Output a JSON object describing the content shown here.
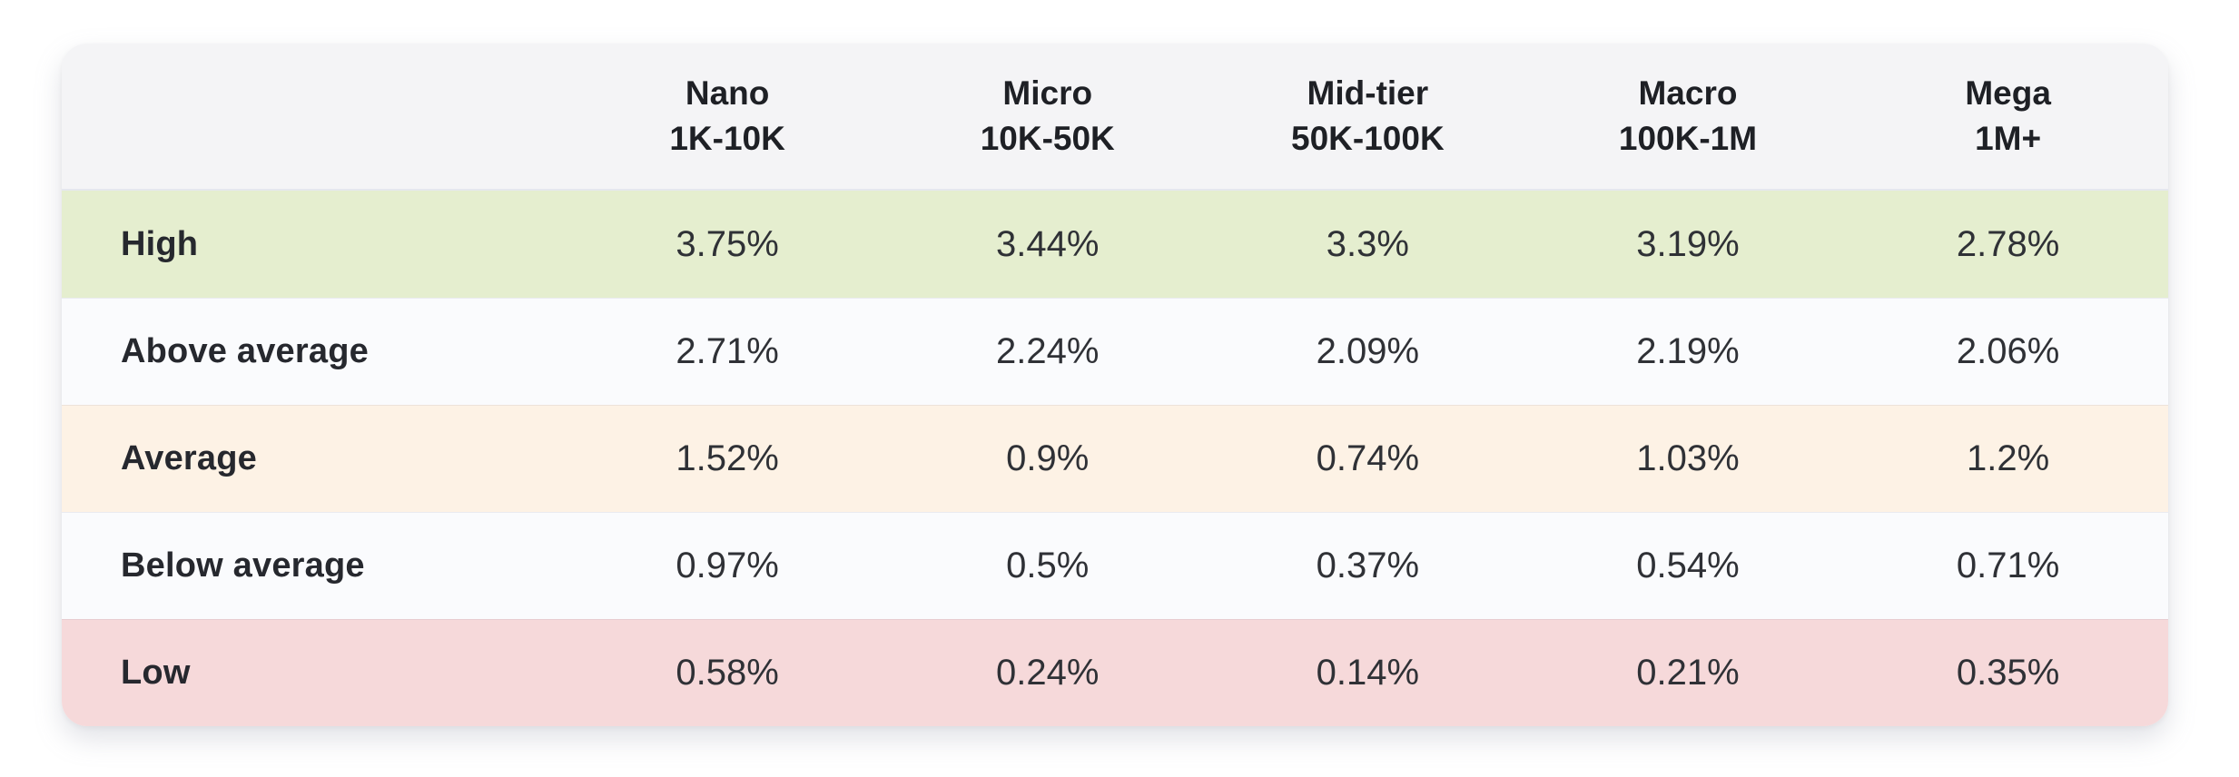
{
  "table": {
    "columns": [
      {
        "label": "Nano",
        "range": "1K-10K"
      },
      {
        "label": "Micro",
        "range": "10K-50K"
      },
      {
        "label": "Mid-tier",
        "range": "50K-100K"
      },
      {
        "label": "Macro",
        "range": "100K-1M"
      },
      {
        "label": "Mega",
        "range": "1M+"
      }
    ],
    "rows": [
      {
        "label": "High",
        "values": [
          "3.75%",
          "3.44%",
          "3.3%",
          "3.19%",
          "2.78%"
        ]
      },
      {
        "label": "Above average",
        "values": [
          "2.71%",
          "2.24%",
          "2.09%",
          "2.19%",
          "2.06%"
        ]
      },
      {
        "label": "Average",
        "values": [
          "1.52%",
          "0.9%",
          "0.74%",
          "1.03%",
          "1.2%"
        ]
      },
      {
        "label": "Below average",
        "values": [
          "0.97%",
          "0.5%",
          "0.37%",
          "0.54%",
          "0.71%"
        ]
      },
      {
        "label": "Low",
        "values": [
          "0.58%",
          "0.24%",
          "0.14%",
          "0.21%",
          "0.35%"
        ]
      }
    ]
  },
  "colors": {
    "header_bg": "#f4f4f6",
    "header_divider": "#e5e7ee",
    "row_high_bg": "#e5eecf",
    "row_neutral_bg": "#fafbfd",
    "row_average_bg": "#fdf2e5",
    "row_low_bg": "#f6d9da",
    "label_text": "#26282e",
    "value_text": "#2f3136"
  },
  "chart_data": {
    "type": "table",
    "title": "",
    "row_labels": [
      "High",
      "Above average",
      "Average",
      "Below average",
      "Low"
    ],
    "column_labels": [
      "Nano 1K-10K",
      "Micro 10K-50K",
      "Mid-tier 50K-100K",
      "Macro 100K-1M",
      "Mega 1M+"
    ],
    "values_percent": [
      [
        3.75,
        3.44,
        3.3,
        3.19,
        2.78
      ],
      [
        2.71,
        2.24,
        2.09,
        2.19,
        2.06
      ],
      [
        1.52,
        0.9,
        0.74,
        1.03,
        1.2
      ],
      [
        0.97,
        0.5,
        0.37,
        0.54,
        0.71
      ],
      [
        0.58,
        0.24,
        0.14,
        0.21,
        0.35
      ]
    ]
  }
}
